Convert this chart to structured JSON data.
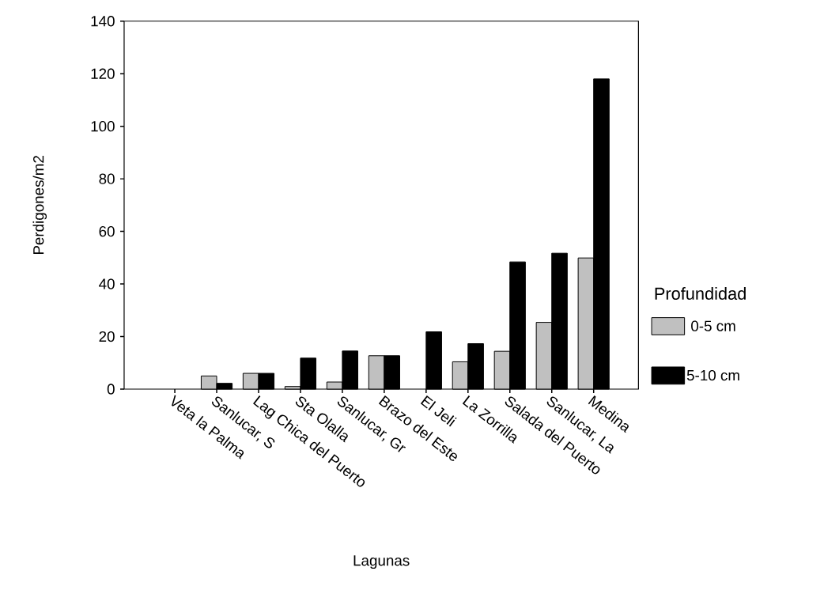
{
  "chart_data": {
    "type": "bar",
    "xlabel": "Lagunas",
    "ylabel": "Perdigones/m2",
    "legend_title": "Profundidad",
    "categories": [
      "Veta la Palma",
      "Sanlucar, S",
      "Lag Chica del Puerto",
      "Sta Olalla",
      "Sanlucar, Gr",
      "Brazo del Este",
      "El Jeli",
      "La Zorrilla",
      "Salada del Puerto",
      "Sanlucar, La",
      "Medina"
    ],
    "series": [
      {
        "name": "0-5 cm",
        "color": "#c0c0c0",
        "values": [
          null,
          5.0,
          6.0,
          1.0,
          2.7,
          12.7,
          null,
          10.4,
          14.4,
          25.4,
          49.9
        ]
      },
      {
        "name": "5-10 cm",
        "color": "#000000",
        "values": [
          null,
          2.2,
          6.0,
          11.8,
          14.5,
          12.7,
          21.8,
          17.3,
          48.4,
          51.7,
          118
        ]
      }
    ],
    "ylim": [
      0,
      140
    ],
    "yticks": [
      0,
      20,
      40,
      60,
      80,
      100,
      120,
      140
    ],
    "legend": "right",
    "grid": false
  }
}
